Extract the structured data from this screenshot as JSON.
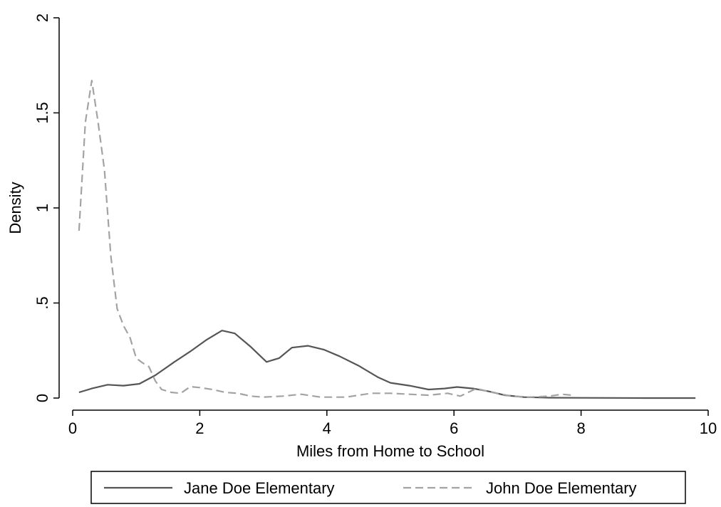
{
  "chart_data": {
    "type": "line",
    "xlabel": "Miles from Home to School",
    "ylabel": "Density",
    "xlim": [
      0,
      10
    ],
    "ylim": [
      0,
      2
    ],
    "x_ticks": [
      {
        "value": 0,
        "label": "0"
      },
      {
        "value": 2,
        "label": "2"
      },
      {
        "value": 4,
        "label": "4"
      },
      {
        "value": 6,
        "label": "6"
      },
      {
        "value": 8,
        "label": "8"
      },
      {
        "value": 10,
        "label": "10"
      }
    ],
    "y_ticks": [
      {
        "value": 0,
        "label": "0"
      },
      {
        "value": 0.5,
        "label": ".5"
      },
      {
        "value": 1,
        "label": "1"
      },
      {
        "value": 1.5,
        "label": "1.5"
      },
      {
        "value": 2,
        "label": "2"
      }
    ],
    "grid": false,
    "legend_position": "bottom",
    "series": [
      {
        "name": "Jane Doe Elementary",
        "color": "#555555",
        "dash": "solid",
        "x": [
          0.1,
          0.3,
          0.55,
          0.8,
          1.05,
          1.3,
          1.6,
          1.85,
          2.1,
          2.35,
          2.55,
          2.8,
          3.05,
          3.25,
          3.45,
          3.7,
          3.95,
          4.2,
          4.5,
          4.8,
          5.0,
          5.3,
          5.6,
          5.85,
          6.05,
          6.3,
          6.55,
          6.8,
          7.1,
          7.5,
          8.0,
          9.0,
          9.8
        ],
        "y": [
          0.03,
          0.05,
          0.07,
          0.065,
          0.075,
          0.12,
          0.19,
          0.245,
          0.305,
          0.355,
          0.34,
          0.27,
          0.19,
          0.21,
          0.265,
          0.275,
          0.255,
          0.22,
          0.17,
          0.11,
          0.08,
          0.065,
          0.045,
          0.05,
          0.058,
          0.05,
          0.035,
          0.015,
          0.005,
          0.002,
          0.001,
          0.0,
          0.0
        ]
      },
      {
        "name": "John Doe Elementary",
        "color": "#a3a3a3",
        "dash": "dashed",
        "x": [
          0.1,
          0.2,
          0.3,
          0.4,
          0.5,
          0.6,
          0.7,
          0.8,
          0.9,
          1.0,
          1.1,
          1.2,
          1.3,
          1.4,
          1.55,
          1.7,
          1.85,
          2.0,
          2.2,
          2.4,
          2.6,
          2.8,
          3.0,
          3.3,
          3.6,
          3.9,
          4.3,
          4.7,
          5.0,
          5.3,
          5.6,
          5.9,
          6.1,
          6.35,
          6.6,
          6.9,
          7.2,
          7.5,
          7.7,
          7.85
        ],
        "y": [
          0.88,
          1.45,
          1.67,
          1.45,
          1.2,
          0.75,
          0.47,
          0.38,
          0.32,
          0.21,
          0.185,
          0.165,
          0.09,
          0.045,
          0.03,
          0.025,
          0.06,
          0.055,
          0.045,
          0.03,
          0.025,
          0.01,
          0.005,
          0.01,
          0.02,
          0.005,
          0.005,
          0.025,
          0.025,
          0.02,
          0.015,
          0.025,
          0.01,
          0.05,
          0.03,
          0.01,
          0.005,
          0.01,
          0.02,
          0.015
        ]
      }
    ]
  }
}
